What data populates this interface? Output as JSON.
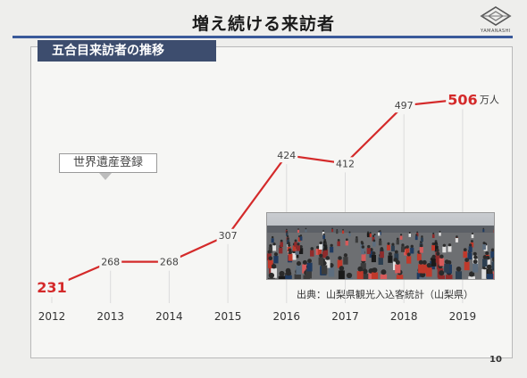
{
  "header": {
    "title": "増え続ける来訪者",
    "logo_text": "YAMANASHI",
    "subtitle": "五合目来訪者の推移"
  },
  "annotation": {
    "label": "世界遺産登録"
  },
  "source_note": "出典：山梨県観光入込客統計（山梨県）",
  "page_number": "10",
  "colors": {
    "line": "#d42a2a",
    "subtitle_band": "#3d4d6e",
    "title_rule": "#3a5a9a"
  },
  "chart_data": {
    "type": "line",
    "title": "",
    "xlabel": "",
    "ylabel": "",
    "categories": [
      "2012",
      "2013",
      "2014",
      "2015",
      "2016",
      "2017",
      "2018",
      "2019"
    ],
    "series": [
      {
        "values": [
          231,
          268,
          268,
          307,
          424,
          412,
          497,
          506
        ]
      }
    ],
    "value_labels": [
      "231",
      "268",
      "268",
      "307",
      "424",
      "412",
      "497",
      "506"
    ],
    "highlighted_points": [
      "2012",
      "2019"
    ],
    "unit_label": "万人",
    "ylim": [
      150,
      560
    ],
    "grid": "vertical"
  }
}
